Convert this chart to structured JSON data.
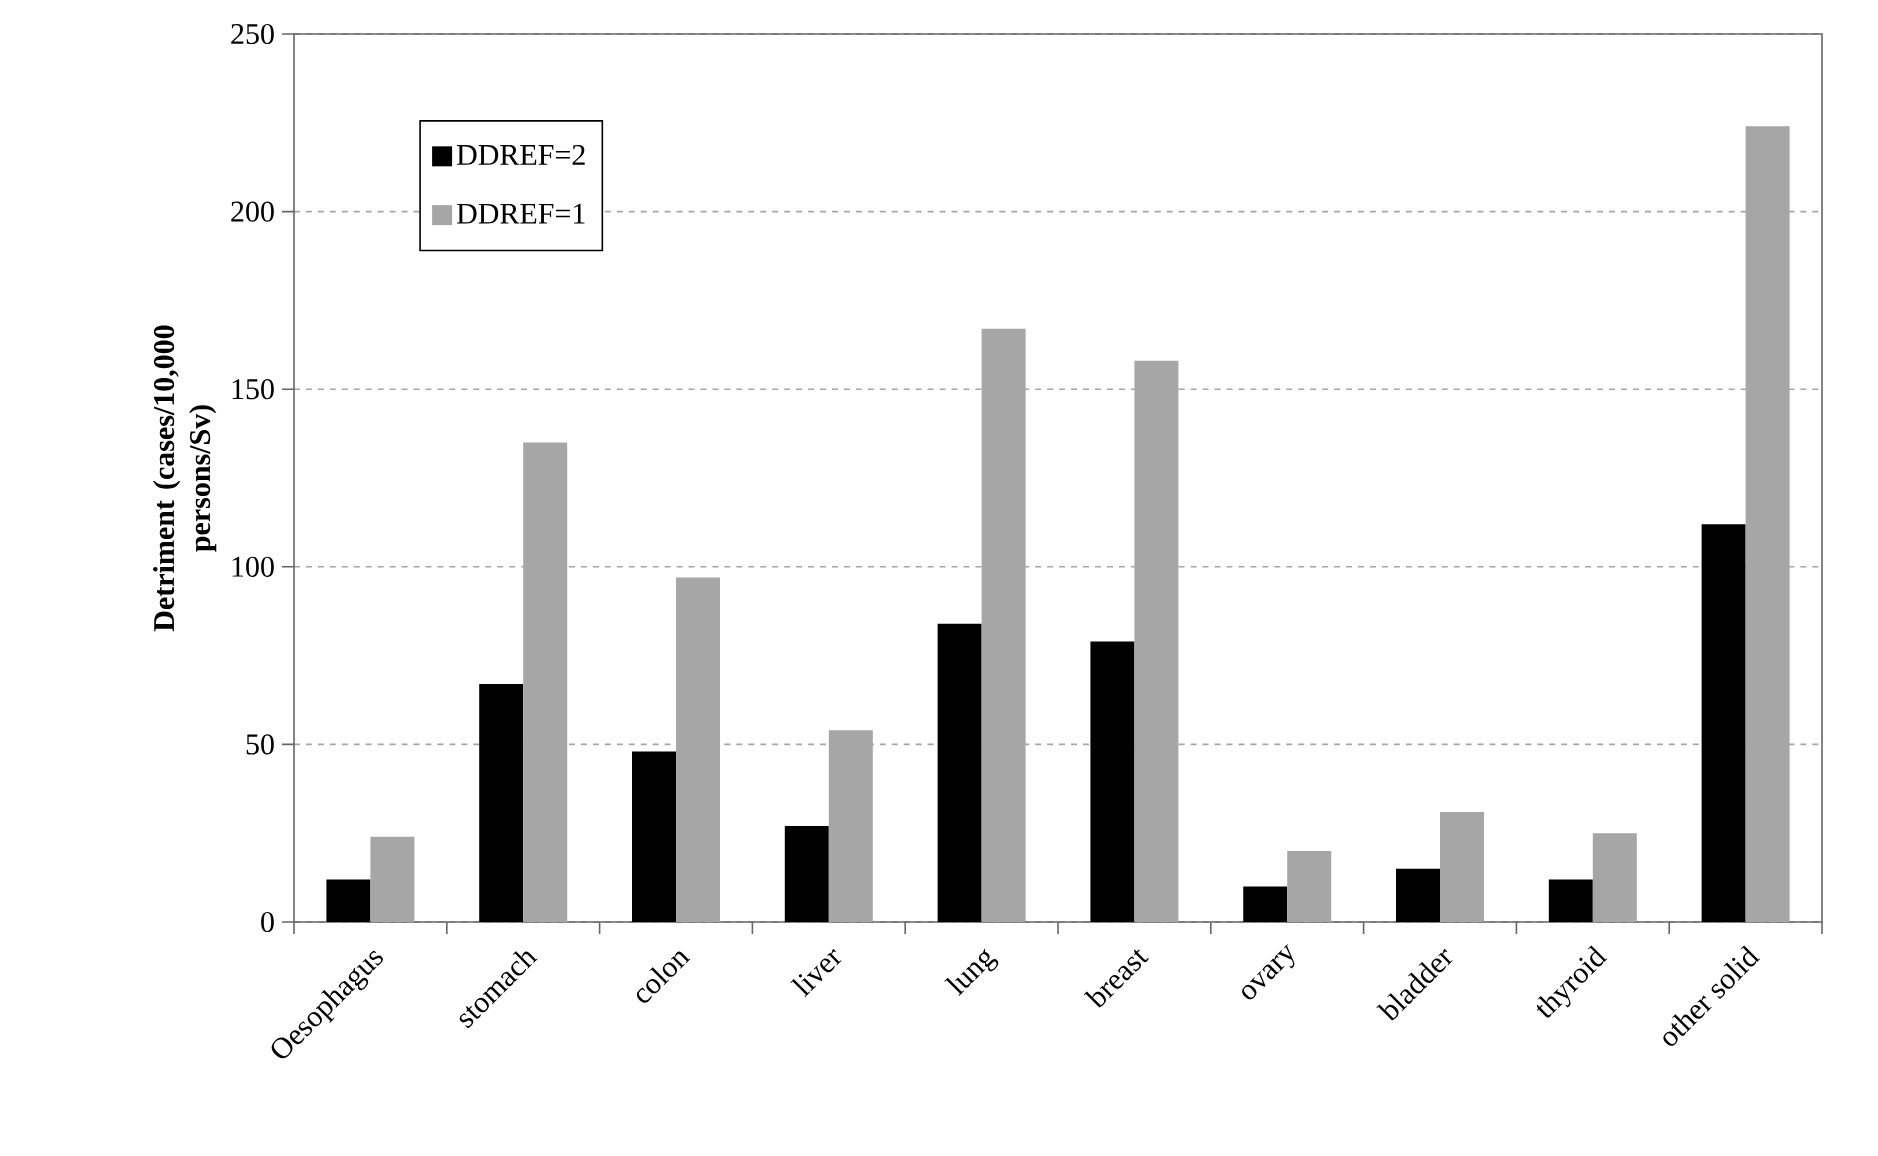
{
  "chart_data": {
    "type": "bar",
    "ylabel": "Detriment (cases/10,000 persons/Sv)",
    "categories": [
      "Oesophagus",
      "stomach",
      "colon",
      "liver",
      "lung",
      "breast",
      "ovary",
      "bladder",
      "thyroid",
      "other solid"
    ],
    "series": [
      {
        "name": "DDREF=2",
        "color": "#000000",
        "values": [
          12,
          67,
          48,
          27,
          84,
          79,
          10,
          15,
          12,
          112
        ]
      },
      {
        "name": "DDREF=1",
        "color": "#a6a6a6",
        "values": [
          24,
          135,
          97,
          54,
          167,
          158,
          20,
          31,
          25,
          224
        ]
      }
    ],
    "ylim": [
      0,
      250
    ],
    "yticks": [
      0,
      50,
      100,
      150,
      200,
      250
    ],
    "grid": "y",
    "legend": "top left"
  }
}
